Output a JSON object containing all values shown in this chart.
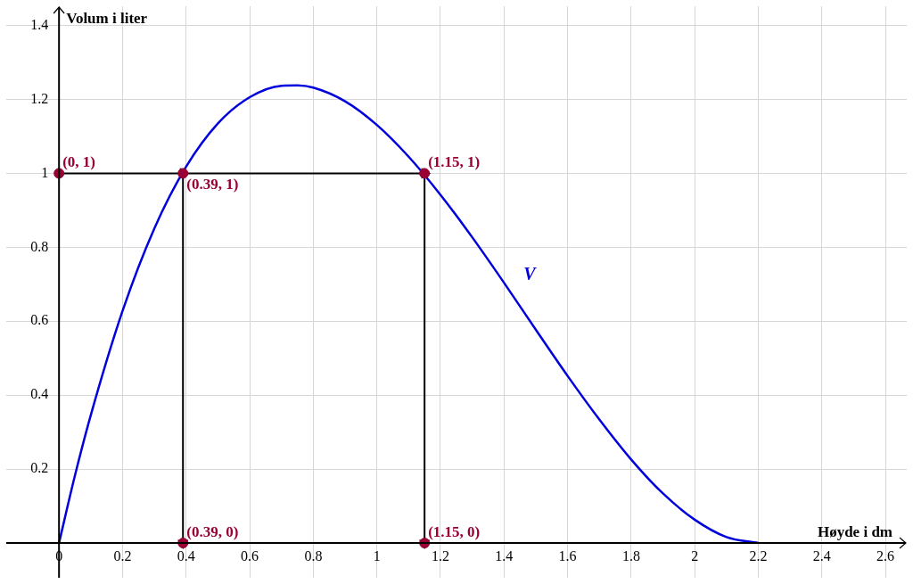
{
  "chart_data": {
    "type": "line",
    "xlabel": "Høyde i dm",
    "ylabel": "Volum i liter",
    "xlim": [
      -0.166,
      2.667
    ],
    "ylim": [
      -0.094,
      1.452
    ],
    "xticks": [
      0,
      0.2,
      0.4,
      0.6,
      0.8,
      1,
      1.2,
      1.4,
      1.6,
      1.8,
      2,
      2.2,
      2.4,
      2.6
    ],
    "yticks": [
      0.2,
      0.4,
      0.6,
      0.8,
      1,
      1.2,
      1.4
    ],
    "grid": true,
    "legend": false,
    "series": [
      {
        "name": "V",
        "color": "#0000dd",
        "marker": "none",
        "x": [
          0,
          0.05,
          0.1,
          0.2,
          0.3,
          0.4,
          0.5,
          0.6,
          0.7,
          0.75,
          0.8,
          0.9,
          1,
          1.1,
          1.2,
          1.3,
          1.4,
          1.5,
          1.6,
          1.7,
          1.8,
          1.9,
          2,
          2.1,
          2.2
        ],
        "values": [
          0,
          0.182,
          0.346,
          0.628,
          0.851,
          1.018,
          1.135,
          1.206,
          1.237,
          1.238,
          1.232,
          1.195,
          1.131,
          1.045,
          0.942,
          0.827,
          0.704,
          0.577,
          0.452,
          0.334,
          0.226,
          0.134,
          0.063,
          0.016,
          0
        ]
      },
      {
        "color": "#000000",
        "marker": "triangle",
        "x": [
          0,
          0.39
        ],
        "values": [
          1,
          1
        ]
      },
      {
        "color": "#000000",
        "marker": "triangle",
        "x": [
          0.39,
          1.15
        ],
        "values": [
          1,
          1
        ]
      },
      {
        "color": "#000000",
        "marker": "triangle",
        "x": [
          0.39,
          0.39
        ],
        "values": [
          1,
          0
        ]
      },
      {
        "color": "#000000",
        "marker": "triangle",
        "x": [
          1.15,
          1.15
        ],
        "values": [
          1,
          0
        ]
      },
      {
        "type": "scatter",
        "color": "#990033",
        "marker": "circle",
        "x": [
          0,
          0.39,
          1.15,
          0.39,
          1.15
        ],
        "values": [
          1,
          1,
          1,
          0,
          0
        ]
      }
    ],
    "annotations": [
      {
        "text": "(0, 1)",
        "x": 0,
        "y": 1
      },
      {
        "text": "(0.39, 1)",
        "x": 0.39,
        "y": 1
      },
      {
        "text": "(1.15, 1)",
        "x": 1.15,
        "y": 1
      },
      {
        "text": "(0.39, 0)",
        "x": 0.39,
        "y": 0
      },
      {
        "text": "(1.15, 0)",
        "x": 1.15,
        "y": 0
      }
    ]
  }
}
